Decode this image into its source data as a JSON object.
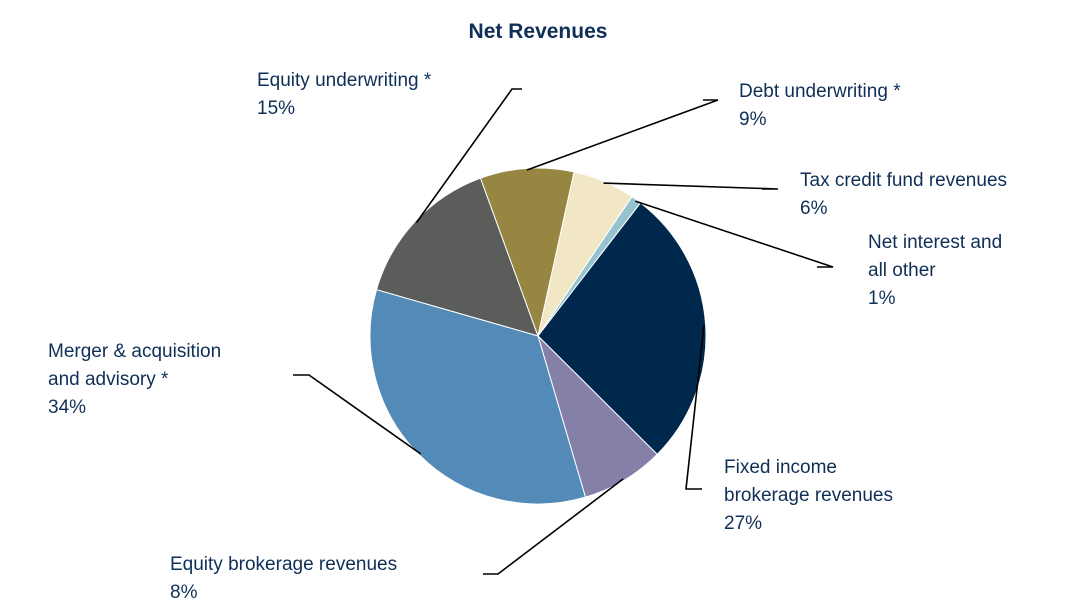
{
  "chart_data": {
    "type": "pie",
    "title": "Net Revenues",
    "legend": "none",
    "slices": [
      {
        "label_lines": [
          "Equity underwriting *"
        ],
        "value": 15,
        "value_label": "15%",
        "color": "#5b5d5a"
      },
      {
        "label_lines": [
          "Debt underwriting *"
        ],
        "value": 9,
        "value_label": "9%",
        "color": "#978642"
      },
      {
        "label_lines": [
          "Tax credit fund revenues"
        ],
        "value": 6,
        "value_label": "6%",
        "color": "#f2e7c5"
      },
      {
        "label_lines": [
          "Net interest and",
          "all other"
        ],
        "value": 1,
        "value_label": "1%",
        "color": "#95c4d0"
      },
      {
        "label_lines": [
          "Fixed income",
          "brokerage revenues"
        ],
        "value": 27,
        "value_label": "27%",
        "color": "#00284c"
      },
      {
        "label_lines": [
          "Equity brokerage revenues"
        ],
        "value": 8,
        "value_label": "8%",
        "color": "#8480a7"
      },
      {
        "label_lines": [
          "Merger & acquisition",
          "and advisory *"
        ],
        "value": 34,
        "value_label": "34%",
        "color": "#538ab7"
      }
    ]
  }
}
